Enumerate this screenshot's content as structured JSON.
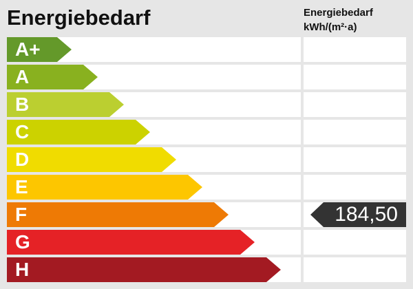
{
  "title": "Energiebedarf",
  "column_header": {
    "line1": "Energiebedarf",
    "line2": "kWh/(m²·a)"
  },
  "classes": [
    {
      "label": "A+",
      "color": "#64992a"
    },
    {
      "label": "A",
      "color": "#89b11f"
    },
    {
      "label": "B",
      "color": "#bbcf30"
    },
    {
      "label": "C",
      "color": "#ccd200"
    },
    {
      "label": "D",
      "color": "#f0dc00"
    },
    {
      "label": "E",
      "color": "#fdc600"
    },
    {
      "label": "F",
      "color": "#ee7a05"
    },
    {
      "label": "G",
      "color": "#e52226"
    },
    {
      "label": "H",
      "color": "#a31a22"
    }
  ],
  "value": {
    "text": "184,50",
    "class": "F",
    "color": "#333333"
  }
}
